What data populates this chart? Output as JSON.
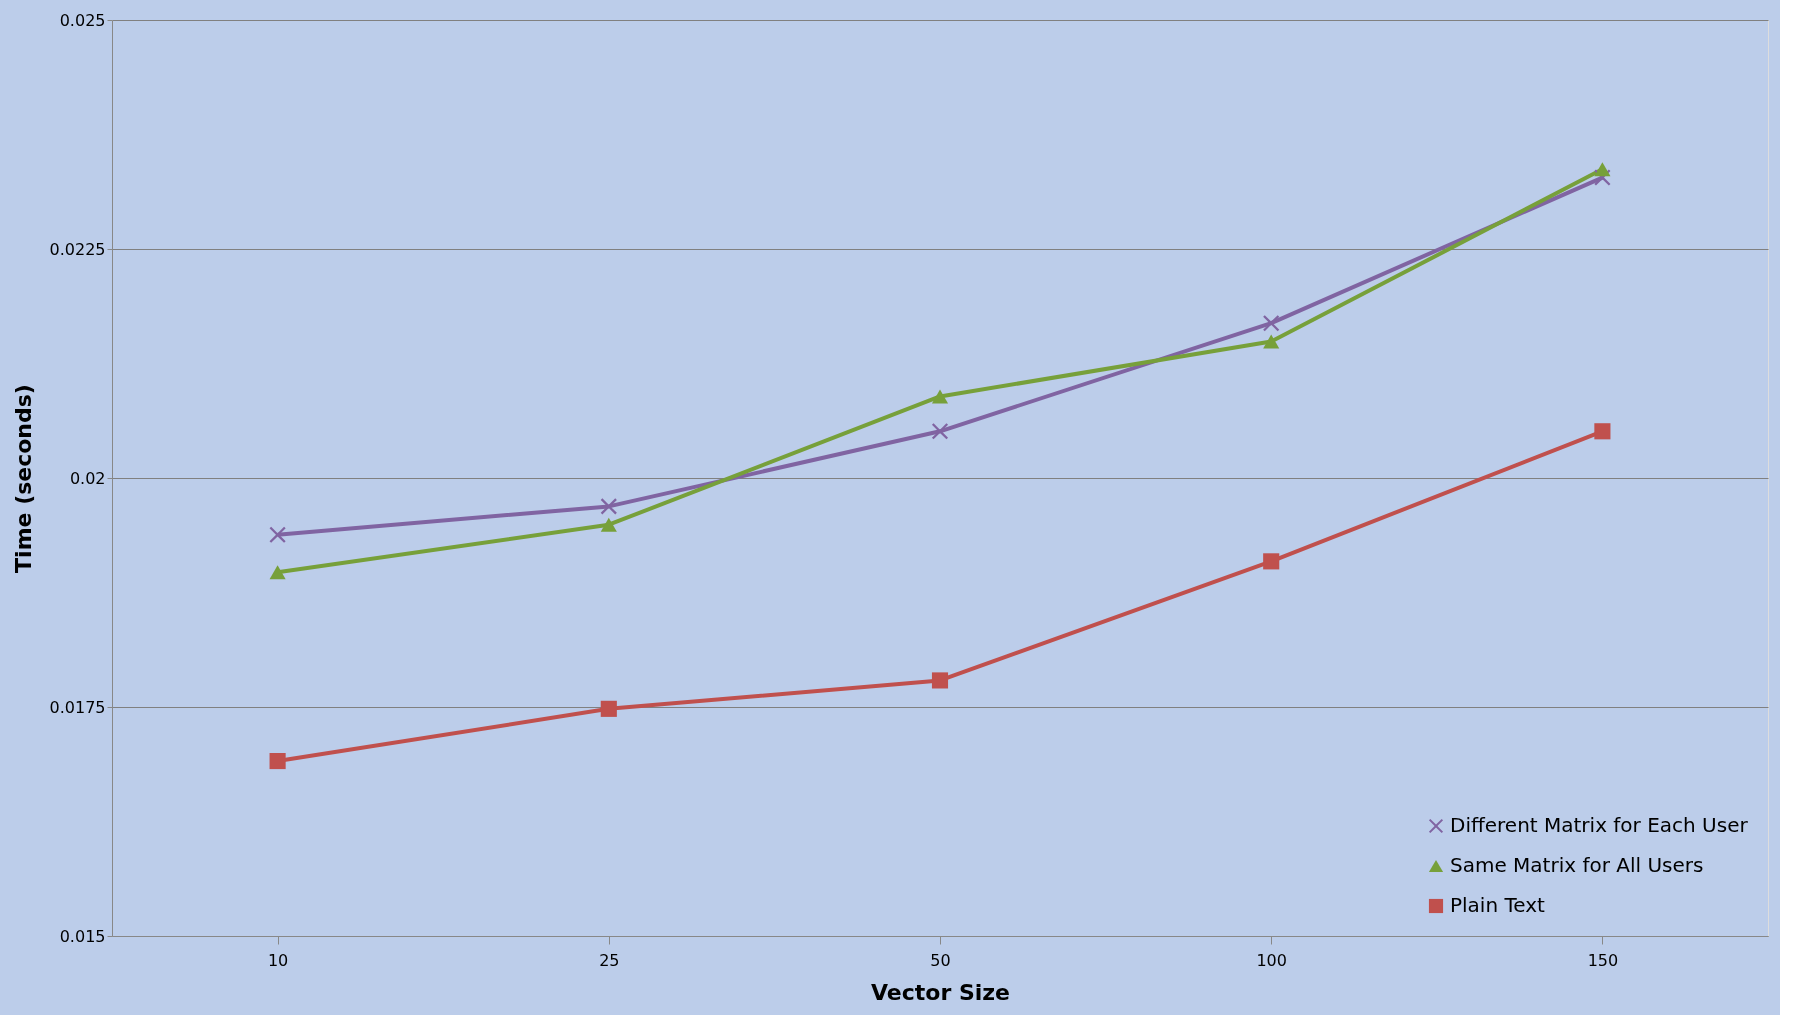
{
  "chart_data": {
    "type": "line",
    "xlabel": "Vector Size",
    "ylabel": "Time (seconds)",
    "categories": [
      "10",
      "25",
      "50",
      "100",
      "150"
    ],
    "series": [
      {
        "name": "Different Matrix for Each User",
        "color": "#8064a2",
        "marker": "cross",
        "values": [
          0.01938,
          0.01969,
          0.02051,
          0.02169,
          0.02328
        ]
      },
      {
        "name": "Same Matrix for All Users",
        "color": "#77a03a",
        "marker": "triangle",
        "values": [
          0.01897,
          0.01949,
          0.02089,
          0.02149,
          0.02337
        ]
      },
      {
        "name": "Plain Text",
        "color": "#c0504d",
        "marker": "square",
        "values": [
          0.01691,
          0.01748,
          0.01779,
          0.01909,
          0.02051
        ]
      }
    ],
    "ylim": [
      0.015,
      0.025
    ],
    "yticks": [
      0.015,
      0.0175,
      0.02,
      0.0225,
      0.025
    ],
    "grid": "y",
    "legend": "bottom right",
    "line_style": "solid"
  }
}
